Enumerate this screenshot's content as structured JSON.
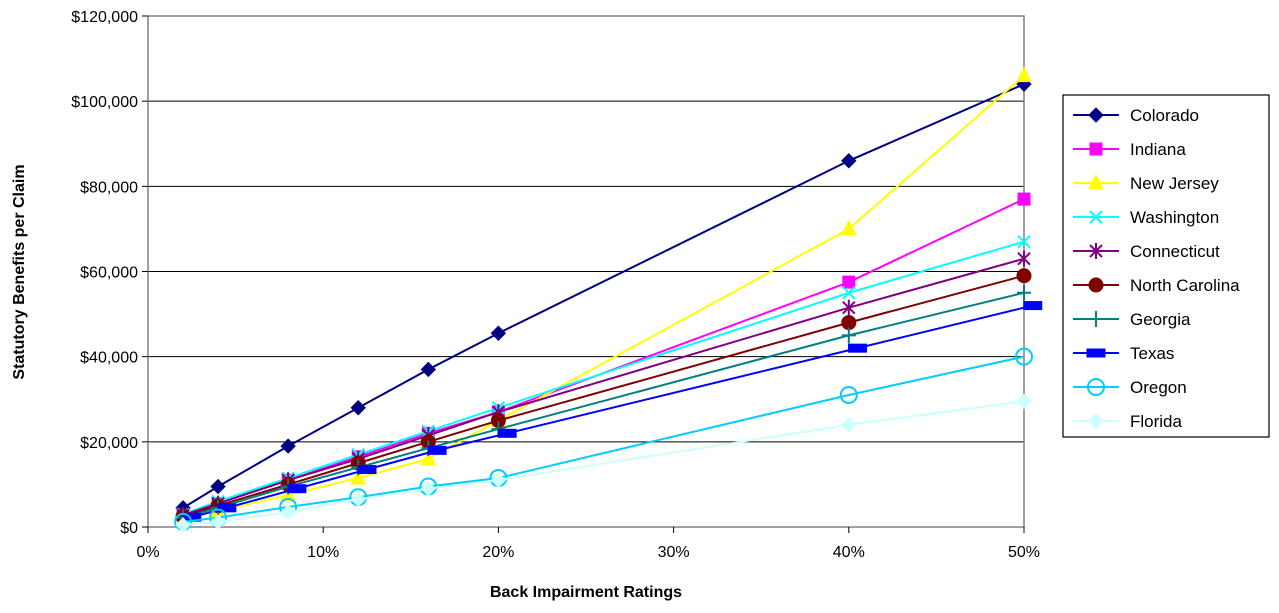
{
  "chart_data": {
    "type": "line",
    "title": "",
    "xlabel": "Back Impairment Ratings",
    "ylabel": "Statutory Benefits per Claim",
    "xlim": [
      0,
      50
    ],
    "ylim": [
      0,
      120000
    ],
    "x_ticks": [
      0,
      10,
      20,
      30,
      40,
      50
    ],
    "x_tick_labels": [
      "0%",
      "10%",
      "20%",
      "30%",
      "40%",
      "50%"
    ],
    "y_ticks": [
      0,
      20000,
      40000,
      60000,
      80000,
      100000,
      120000
    ],
    "y_tick_labels": [
      "$0",
      "$20,000",
      "$40,000",
      "$60,000",
      "$80,000",
      "$100,000",
      "$120,000"
    ],
    "grid": "horizontal",
    "legend_position": "right",
    "series": [
      {
        "name": "Colorado",
        "color": "#000080",
        "marker": "diamond",
        "x": [
          2,
          4,
          8,
          12,
          16,
          20,
          40,
          50
        ],
        "values": [
          4500,
          9500,
          19000,
          28000,
          37000,
          45500,
          86000,
          104000
        ]
      },
      {
        "name": "Indiana",
        "color": "#ff00ff",
        "marker": "square",
        "x": [
          2,
          4,
          8,
          12,
          16,
          20,
          40,
          50
        ],
        "values": [
          2800,
          5500,
          11000,
          16500,
          22000,
          27000,
          57500,
          77000
        ]
      },
      {
        "name": "New Jersey",
        "color": "#ffff00",
        "marker": "triangle",
        "x": [
          2,
          4,
          8,
          12,
          16,
          20,
          40,
          50
        ],
        "values": [
          1800,
          3800,
          7500,
          11500,
          16000,
          25000,
          70000,
          106000
        ]
      },
      {
        "name": "Washington",
        "color": "#00ffff",
        "marker": "x",
        "x": [
          2,
          4,
          8,
          12,
          16,
          20,
          40,
          50
        ],
        "values": [
          3000,
          6000,
          11500,
          17000,
          22500,
          28000,
          55000,
          67000
        ]
      },
      {
        "name": "Connecticut",
        "color": "#800080",
        "marker": "star",
        "x": [
          2,
          4,
          8,
          12,
          16,
          20,
          40,
          50
        ],
        "values": [
          2800,
          5500,
          11000,
          16000,
          21500,
          27000,
          51500,
          63000
        ]
      },
      {
        "name": "North Carolina",
        "color": "#800000",
        "marker": "circle",
        "x": [
          2,
          4,
          8,
          12,
          16,
          20,
          40,
          50
        ],
        "values": [
          2500,
          5000,
          10000,
          15000,
          20000,
          25000,
          48000,
          59000
        ]
      },
      {
        "name": "Georgia",
        "color": "#008080",
        "marker": "plus",
        "x": [
          2,
          4,
          8,
          12,
          16,
          20,
          40,
          50
        ],
        "values": [
          2200,
          4500,
          9500,
          14000,
          18500,
          23000,
          45000,
          55000
        ]
      },
      {
        "name": "Texas",
        "color": "#0000ff",
        "marker": "dash",
        "x": [
          2.5,
          4.5,
          8.5,
          12.5,
          16.5,
          20.5,
          40.5,
          50.5
        ],
        "values": [
          2300,
          4500,
          9000,
          13500,
          18000,
          22000,
          42000,
          52000
        ]
      },
      {
        "name": "Oregon",
        "color": "#00ccff",
        "marker": "open-circle",
        "x": [
          2,
          4,
          8,
          12,
          16,
          20,
          40,
          50
        ],
        "values": [
          1200,
          2200,
          4700,
          7000,
          9500,
          11500,
          31000,
          40000
        ]
      },
      {
        "name": "Florida",
        "color": "#ccffff",
        "marker": "diamond",
        "x": [
          2,
          4,
          8,
          12,
          16,
          20,
          40,
          50
        ],
        "values": [
          500,
          1200,
          3500,
          6500,
          9000,
          11000,
          24000,
          29500
        ]
      }
    ]
  }
}
